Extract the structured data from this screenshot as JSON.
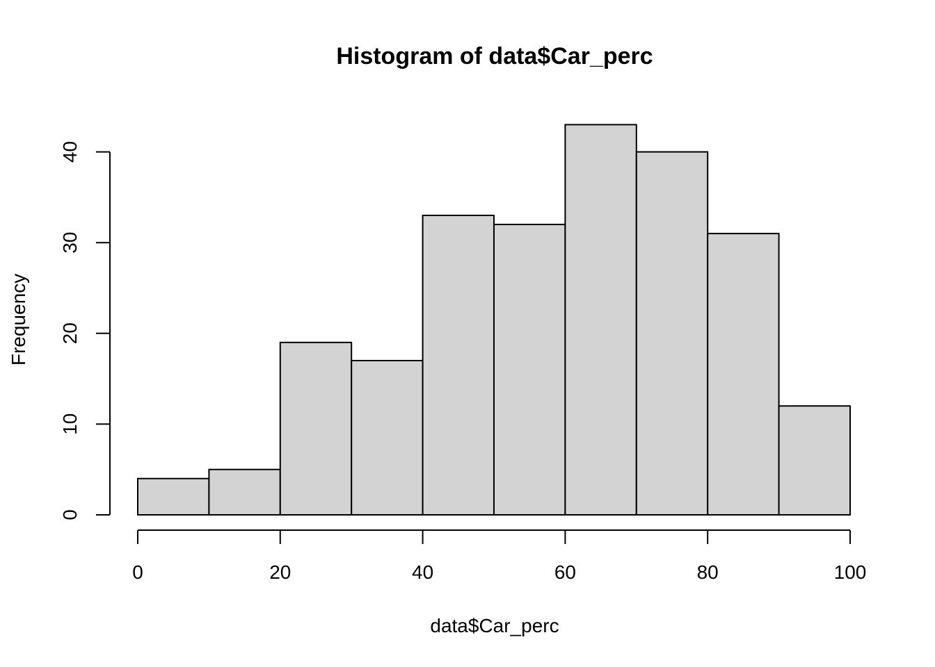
{
  "chart_data": {
    "type": "bar",
    "title": "Histogram of data$Car_perc",
    "xlabel": "data$Car_perc",
    "ylabel": "Frequency",
    "bins": [
      {
        "start": 0,
        "end": 10,
        "count": 4
      },
      {
        "start": 10,
        "end": 20,
        "count": 5
      },
      {
        "start": 20,
        "end": 30,
        "count": 19
      },
      {
        "start": 30,
        "end": 40,
        "count": 17
      },
      {
        "start": 40,
        "end": 50,
        "count": 33
      },
      {
        "start": 50,
        "end": 60,
        "count": 32
      },
      {
        "start": 60,
        "end": 70,
        "count": 43
      },
      {
        "start": 70,
        "end": 80,
        "count": 40
      },
      {
        "start": 80,
        "end": 90,
        "count": 31
      },
      {
        "start": 90,
        "end": 100,
        "count": 12
      }
    ],
    "xlim": [
      0,
      100
    ],
    "ylim": [
      0,
      43
    ],
    "x_ticks": [
      0,
      20,
      40,
      60,
      80,
      100
    ],
    "y_ticks": [
      0,
      10,
      20,
      30,
      40
    ],
    "bar_color": "#d3d3d3",
    "border_color": "#000000",
    "grid": false
  }
}
